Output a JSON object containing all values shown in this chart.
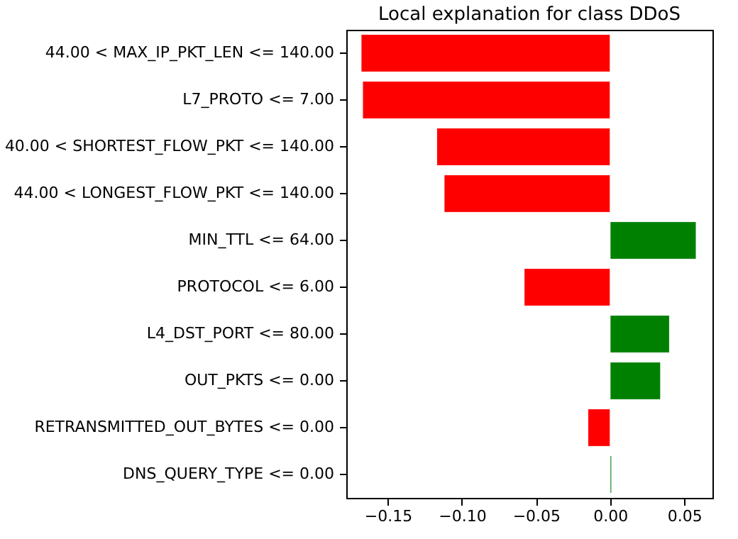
{
  "chart_data": {
    "type": "bar",
    "orientation": "horizontal",
    "title": "Local explanation for class DDoS",
    "categories": [
      "44.00 < MAX_IP_PKT_LEN <= 140.00",
      "L7_PROTO <= 7.00",
      "40.00 < SHORTEST_FLOW_PKT <= 140.00",
      "44.00 < LONGEST_FLOW_PKT <= 140.00",
      "MIN_TTL <= 64.00",
      "PROTOCOL <= 6.00",
      "L4_DST_PORT <= 80.00",
      "OUT_PKTS <= 0.00",
      "RETRANSMITTED_OUT_BYTES <= 0.00",
      "DNS_QUERY_TYPE <= 0.00"
    ],
    "values": [
      -0.168,
      -0.167,
      -0.117,
      -0.112,
      0.058,
      -0.058,
      0.04,
      0.034,
      -0.015,
      0.001
    ],
    "colors": [
      "#ff0000",
      "#ff0000",
      "#ff0000",
      "#ff0000",
      "#008000",
      "#ff0000",
      "#008000",
      "#008000",
      "#ff0000",
      "#008000"
    ],
    "xlim": [
      -0.178,
      0.069
    ],
    "xticks": [
      {
        "value": -0.15,
        "label": "−0.15"
      },
      {
        "value": -0.1,
        "label": "−0.10"
      },
      {
        "value": -0.05,
        "label": "−0.05"
      },
      {
        "value": 0,
        "label": "0.00"
      },
      {
        "value": 0.05,
        "label": "0.05"
      }
    ],
    "grid": false
  }
}
